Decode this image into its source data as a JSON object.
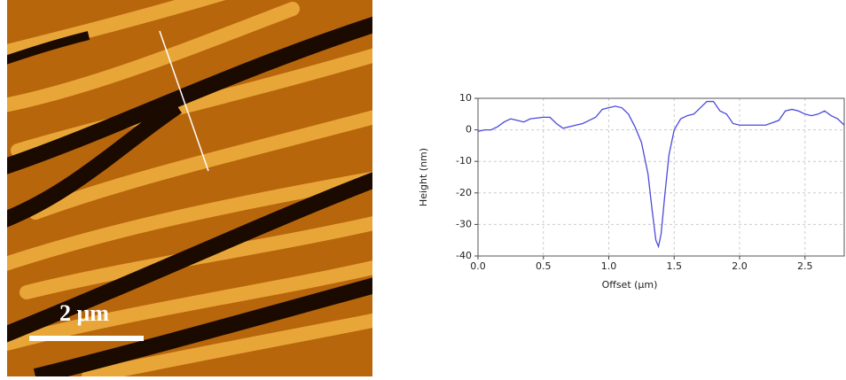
{
  "image": {
    "scale_label": "2 μm"
  },
  "chart_data": {
    "type": "line",
    "x_label": "Offset (µm)",
    "y_label": "Height (nm)",
    "xlim": [
      0,
      2.8
    ],
    "ylim": [
      -40,
      10
    ],
    "xticks": [
      {
        "value": 0,
        "label": "0.0"
      },
      0.5,
      {
        "value": 1,
        "label": "1.0"
      },
      1.5,
      {
        "value": 2,
        "label": "2.0"
      },
      2.5
    ],
    "yticks": [
      -40,
      -30,
      -20,
      -10,
      0,
      10
    ],
    "grid": true,
    "series": [
      {
        "color": "#4a4adc",
        "x": [
          0,
          0.05,
          0.1,
          0.15,
          0.2,
          0.25,
          0.3,
          0.35,
          0.4,
          0.5,
          0.55,
          0.6,
          0.65,
          0.7,
          0.75,
          0.8,
          0.85,
          0.9,
          0.95,
          1.0,
          1.05,
          1.1,
          1.15,
          1.2,
          1.25,
          1.3,
          1.33,
          1.36,
          1.38,
          1.4,
          1.43,
          1.46,
          1.5,
          1.55,
          1.6,
          1.65,
          1.7,
          1.75,
          1.8,
          1.85,
          1.9,
          1.95,
          2.0,
          2.1,
          2.2,
          2.3,
          2.35,
          2.4,
          2.45,
          2.5,
          2.55,
          2.6,
          2.65,
          2.7,
          2.75,
          2.8
        ],
        "values": [
          -0.5,
          0,
          0,
          1,
          2.5,
          3.5,
          3,
          2.5,
          3.5,
          4,
          4,
          2,
          0.5,
          1,
          1.5,
          2,
          3,
          4,
          6.5,
          7,
          7.5,
          7,
          5,
          1,
          -4,
          -14,
          -25,
          -35,
          -37,
          -33,
          -20,
          -8,
          0,
          3.5,
          4.5,
          5,
          7,
          9,
          9,
          6,
          5,
          2,
          1.5,
          1.5,
          1.5,
          3,
          6,
          6.5,
          6,
          5,
          4.5,
          5,
          6,
          4.5,
          3.5,
          1.5
        ]
      }
    ]
  }
}
